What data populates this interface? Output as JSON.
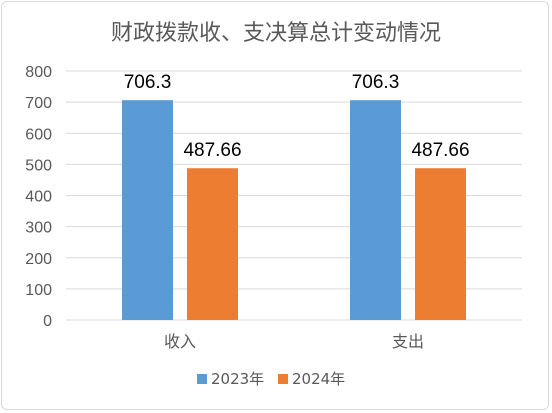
{
  "chart_data": {
    "type": "bar",
    "title": "财政拨款收、支决算总计变动情况",
    "xlabel": "",
    "ylabel": "",
    "categories": [
      "收入",
      "支出"
    ],
    "series": [
      {
        "name": "2023年",
        "color": "#5b9bd5",
        "values": [
          706.3,
          706.3
        ],
        "labels": [
          "706.3",
          "706.3"
        ]
      },
      {
        "name": "2024年",
        "color": "#ed7d31",
        "values": [
          487.66,
          487.66
        ],
        "labels": [
          "487.66",
          "487.66"
        ]
      }
    ],
    "ylim": [
      0,
      800
    ],
    "y_ticks": [
      "0",
      "100",
      "200",
      "300",
      "400",
      "500",
      "600",
      "700",
      "800"
    ],
    "grid": true,
    "legend_position": "bottom",
    "colors": {
      "text": "#595959",
      "grid": "#d9d9d9",
      "value_label": "#000000"
    }
  }
}
